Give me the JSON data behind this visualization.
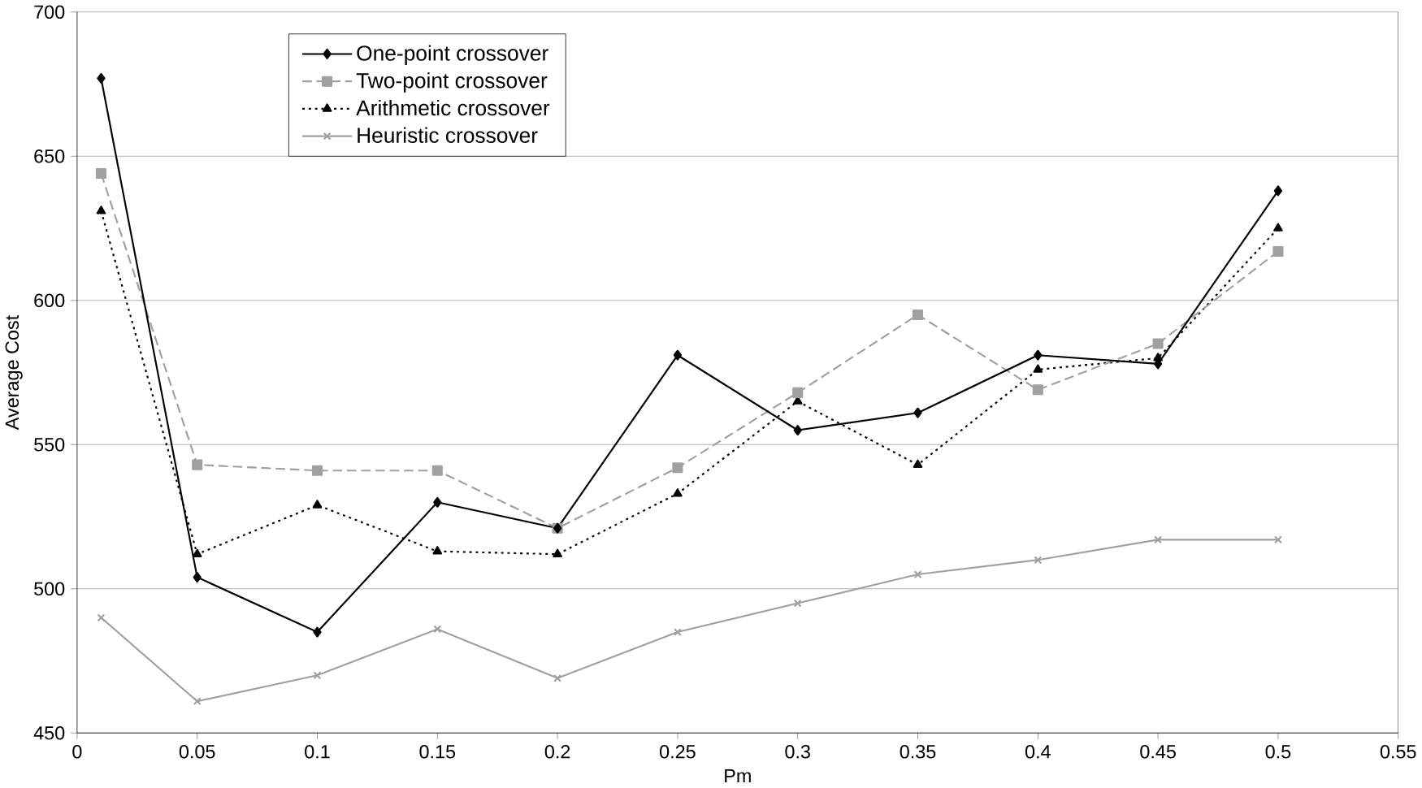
{
  "chart_data": {
    "type": "line",
    "xlabel": "Pm",
    "ylabel": "Average Cost",
    "x": [
      0.01,
      0.05,
      0.1,
      0.15,
      0.2,
      0.25,
      0.3,
      0.35,
      0.4,
      0.45,
      0.5
    ],
    "xlim": [
      0,
      0.55
    ],
    "xticks": [
      0,
      0.05,
      0.1,
      0.15,
      0.2,
      0.25,
      0.3,
      0.35,
      0.4,
      0.45,
      0.5,
      0.55
    ],
    "ylim": [
      450,
      700
    ],
    "yticks": [
      450,
      500,
      550,
      600,
      650,
      700
    ],
    "grid": "y",
    "legend": "top left",
    "series": [
      {
        "name": "One-point crossover",
        "color": "#000000",
        "marker": "diamond",
        "line_style": "solid",
        "values": [
          677,
          504,
          485,
          530,
          521,
          581,
          555,
          561,
          581,
          578,
          638
        ]
      },
      {
        "name": "Two-point crossover",
        "color": "#a0a0a0",
        "marker": "square",
        "line_style": "dashed",
        "values": [
          644,
          543,
          541,
          541,
          521,
          542,
          568,
          595,
          569,
          585,
          617
        ]
      },
      {
        "name": "Arithmetic crossover",
        "color": "#000000",
        "marker": "triangle",
        "line_style": "dotted",
        "values": [
          631,
          512,
          529,
          513,
          512,
          533,
          565,
          543,
          576,
          580,
          625
        ]
      },
      {
        "name": "Heuristic crossover",
        "color": "#a0a0a0",
        "marker": "cross",
        "line_style": "solid",
        "values": [
          490,
          461,
          470,
          486,
          469,
          485,
          495,
          505,
          510,
          517,
          517
        ]
      }
    ]
  }
}
